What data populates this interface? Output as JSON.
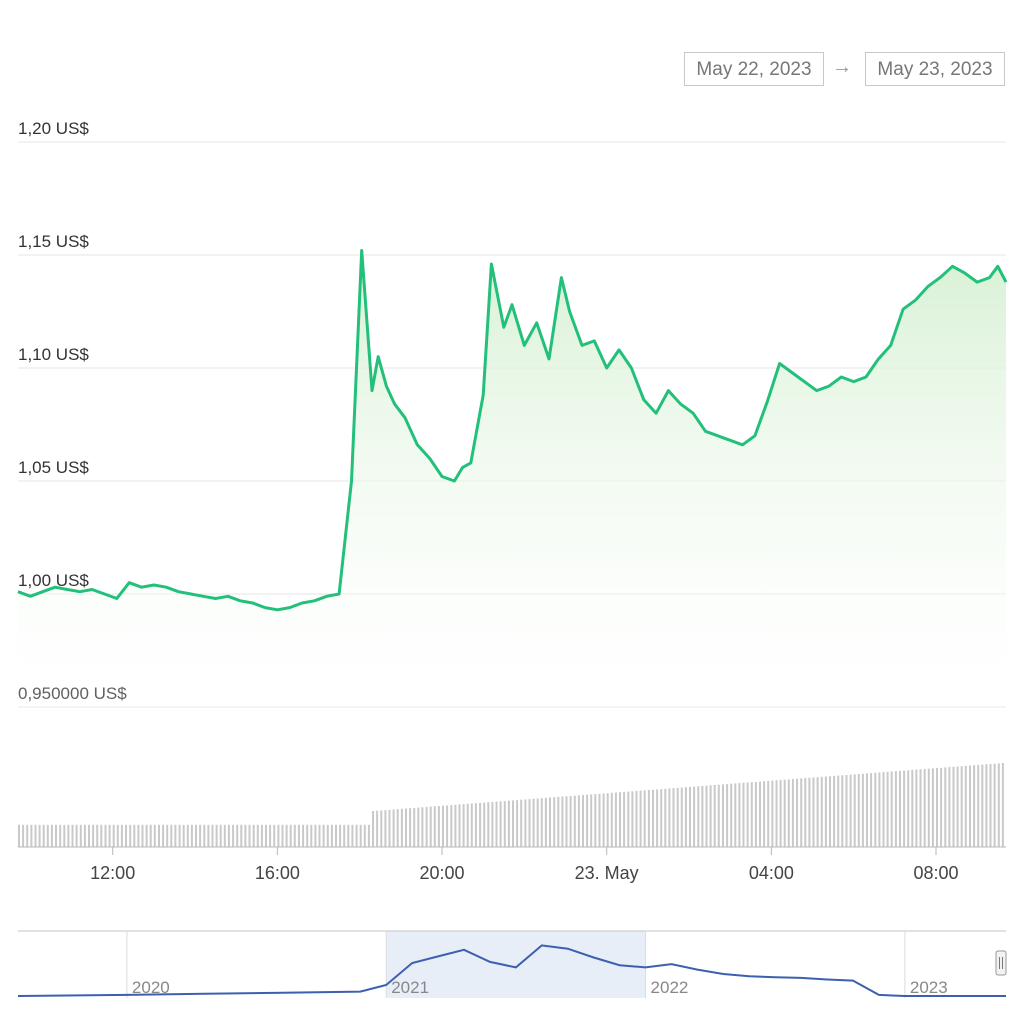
{
  "range": {
    "from": "May 22, 2023",
    "arrow": "→",
    "to": "May 23, 2023"
  },
  "colors": {
    "line": "#22c07a",
    "fill": "#e6f6e4",
    "volume": "#c9c9c9",
    "navigator": "#3c5fb0",
    "navigator_mask": "#e8eef8"
  },
  "chart_data": {
    "type": "line",
    "y_ticks": [
      "1,20 US$",
      "1,15 US$",
      "1,10 US$",
      "1,05 US$",
      "1,00 US$",
      "0,950000 US$"
    ],
    "y_tick_values": [
      1.2,
      1.15,
      1.1,
      1.05,
      1.0,
      0.95
    ],
    "ylim": [
      0.95,
      1.2
    ],
    "x_ticks": [
      "12:00",
      "16:00",
      "20:00",
      "23. May",
      "04:00",
      "08:00"
    ],
    "x_tick_hours": [
      12,
      16,
      20,
      24,
      28,
      32
    ],
    "xlim_hours": [
      9.7,
      33.7
    ],
    "grid": true,
    "series": [
      {
        "x": [
          9.7,
          10.0,
          10.3,
          10.6,
          10.9,
          11.2,
          11.5,
          11.8,
          12.1,
          12.4,
          12.7,
          13.0,
          13.3,
          13.6,
          13.9,
          14.2,
          14.5,
          14.8,
          15.1,
          15.4,
          15.7,
          16.0,
          16.3,
          16.6,
          16.9,
          17.2,
          17.5,
          17.8,
          18.05,
          18.3,
          18.45,
          18.65,
          18.85,
          19.1,
          19.4,
          19.7,
          20.0,
          20.3,
          20.5,
          20.7,
          21.0,
          21.2,
          21.5,
          21.7,
          22.0,
          22.3,
          22.6,
          22.9,
          23.1,
          23.4,
          23.7,
          24.0,
          24.3,
          24.6,
          24.9,
          25.2,
          25.5,
          25.8,
          26.1,
          26.4,
          26.7,
          27.0,
          27.3,
          27.6,
          27.9,
          28.2,
          28.5,
          28.8,
          29.1,
          29.4,
          29.7,
          30.0,
          30.3,
          30.6,
          30.9,
          31.2,
          31.5,
          31.8,
          32.1,
          32.4,
          32.7,
          33.0,
          33.3,
          33.5,
          33.7
        ],
        "values": [
          1.001,
          0.999,
          1.001,
          1.003,
          1.002,
          1.001,
          1.002,
          1.0,
          0.998,
          1.005,
          1.003,
          1.004,
          1.003,
          1.001,
          1.0,
          0.999,
          0.998,
          0.999,
          0.997,
          0.996,
          0.994,
          0.993,
          0.994,
          0.996,
          0.997,
          0.999,
          1.0,
          1.05,
          1.152,
          1.09,
          1.105,
          1.092,
          1.084,
          1.078,
          1.066,
          1.06,
          1.052,
          1.05,
          1.056,
          1.058,
          1.088,
          1.146,
          1.118,
          1.128,
          1.11,
          1.12,
          1.104,
          1.14,
          1.125,
          1.11,
          1.112,
          1.1,
          1.108,
          1.1,
          1.086,
          1.08,
          1.09,
          1.084,
          1.08,
          1.072,
          1.07,
          1.068,
          1.066,
          1.07,
          1.085,
          1.102,
          1.098,
          1.094,
          1.09,
          1.092,
          1.096,
          1.094,
          1.096,
          1.104,
          1.11,
          1.126,
          1.13,
          1.136,
          1.14,
          1.145,
          1.142,
          1.138,
          1.14,
          1.145,
          1.138
        ]
      }
    ],
    "navigator": {
      "x_ticks": [
        "2020",
        "2021",
        "2022",
        "2023"
      ],
      "x_tick_years": [
        2020,
        2021,
        2022,
        2023
      ],
      "xlim_years": [
        2019.58,
        2023.39
      ],
      "selection_years": [
        2021.0,
        2022.0
      ],
      "x": [
        2019.58,
        2020.0,
        2020.3,
        2020.6,
        2020.9,
        2021.0,
        2021.1,
        2021.2,
        2021.3,
        2021.4,
        2021.5,
        2021.6,
        2021.7,
        2021.8,
        2021.9,
        2022.0,
        2022.1,
        2022.2,
        2022.3,
        2022.4,
        2022.5,
        2022.6,
        2022.7,
        2022.8,
        2022.9,
        2023.0,
        2023.2,
        2023.39
      ],
      "values": [
        0.0,
        0.02,
        0.04,
        0.06,
        0.08,
        0.2,
        0.6,
        0.72,
        0.84,
        0.62,
        0.52,
        0.92,
        0.86,
        0.7,
        0.56,
        0.52,
        0.58,
        0.48,
        0.4,
        0.36,
        0.34,
        0.33,
        0.3,
        0.28,
        0.02,
        0.0,
        0.0,
        0.0
      ]
    }
  }
}
